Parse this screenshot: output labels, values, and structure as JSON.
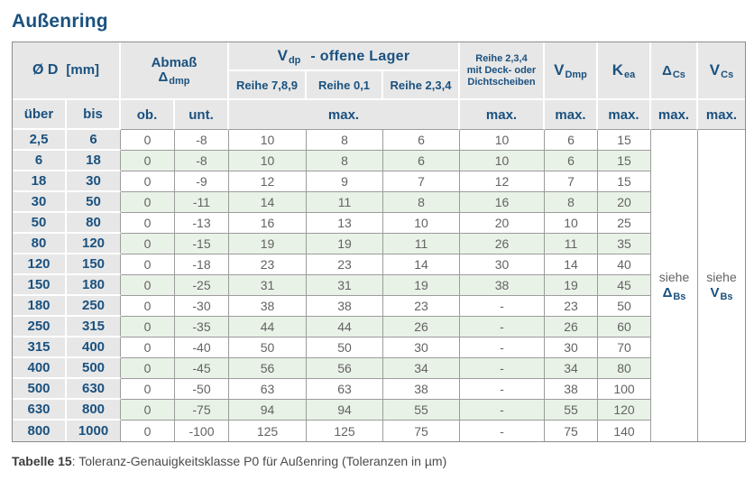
{
  "page": {
    "title": "Außenring",
    "caption_bold": "Tabelle 15",
    "caption_rest": ": Toleranz-Genauigkeitsklasse P0 für Außenring (Toleranzen in µm)"
  },
  "colors": {
    "header_blue": "#1A517F",
    "cell_gray": "#E7E7E7",
    "row_green": "#E9F2E7",
    "data_text_gray": "#636363",
    "border_gray": "#9C9C9C"
  },
  "table": {
    "header": {
      "d_col": {
        "label": "Ø D",
        "unit": "[mm]"
      },
      "abmass": {
        "line1": "Abmaß",
        "symbol": "Δ",
        "sub": "dmp"
      },
      "vdp_group": {
        "symbol": "V",
        "sub": "dp",
        "rest": "-  offene Lager"
      },
      "reihe_789": "Reihe 7,8,9",
      "reihe_01": "Reihe 0,1",
      "reihe_234": "Reihe 2,3,4",
      "sealed": {
        "line1": "Reihe 2,3,4",
        "line2": "mit Deck- oder",
        "line3": "Dichtscheiben"
      },
      "vdmp": {
        "symbol": "V",
        "sub": "Dmp"
      },
      "kea": {
        "symbol": "K",
        "sub": "ea"
      },
      "delta_cs": {
        "symbol": "Δ",
        "sub": "Cs"
      },
      "v_cs": {
        "symbol": "V",
        "sub": "Cs"
      },
      "ueber": "über",
      "bis": "bis",
      "ob": "ob.",
      "unt": "unt.",
      "max": "max."
    },
    "see": {
      "label": "siehe",
      "delta_bs": {
        "symbol": "Δ",
        "sub": "Bs"
      },
      "v_bs": {
        "symbol": "V",
        "sub": "Bs"
      }
    },
    "rows": [
      [
        "2,5",
        "6",
        "0",
        "-8",
        "10",
        "8",
        "6",
        "10",
        "6",
        "15"
      ],
      [
        "6",
        "18",
        "0",
        "-8",
        "10",
        "8",
        "6",
        "10",
        "6",
        "15"
      ],
      [
        "18",
        "30",
        "0",
        "-9",
        "12",
        "9",
        "7",
        "12",
        "7",
        "15"
      ],
      [
        "30",
        "50",
        "0",
        "-11",
        "14",
        "11",
        "8",
        "16",
        "8",
        "20"
      ],
      [
        "50",
        "80",
        "0",
        "-13",
        "16",
        "13",
        "10",
        "20",
        "10",
        "25"
      ],
      [
        "80",
        "120",
        "0",
        "-15",
        "19",
        "19",
        "11",
        "26",
        "11",
        "35"
      ],
      [
        "120",
        "150",
        "0",
        "-18",
        "23",
        "23",
        "14",
        "30",
        "14",
        "40"
      ],
      [
        "150",
        "180",
        "0",
        "-25",
        "31",
        "31",
        "19",
        "38",
        "19",
        "45"
      ],
      [
        "180",
        "250",
        "0",
        "-30",
        "38",
        "38",
        "23",
        "-",
        "23",
        "50"
      ],
      [
        "250",
        "315",
        "0",
        "-35",
        "44",
        "44",
        "26",
        "-",
        "26",
        "60"
      ],
      [
        "315",
        "400",
        "0",
        "-40",
        "50",
        "50",
        "30",
        "-",
        "30",
        "70"
      ],
      [
        "400",
        "500",
        "0",
        "-45",
        "56",
        "56",
        "34",
        "-",
        "34",
        "80"
      ],
      [
        "500",
        "630",
        "0",
        "-50",
        "63",
        "63",
        "38",
        "-",
        "38",
        "100"
      ],
      [
        "630",
        "800",
        "0",
        "-75",
        "94",
        "94",
        "55",
        "-",
        "55",
        "120"
      ],
      [
        "800",
        "1000",
        "0",
        "-100",
        "125",
        "125",
        "75",
        "-",
        "75",
        "140"
      ]
    ]
  }
}
